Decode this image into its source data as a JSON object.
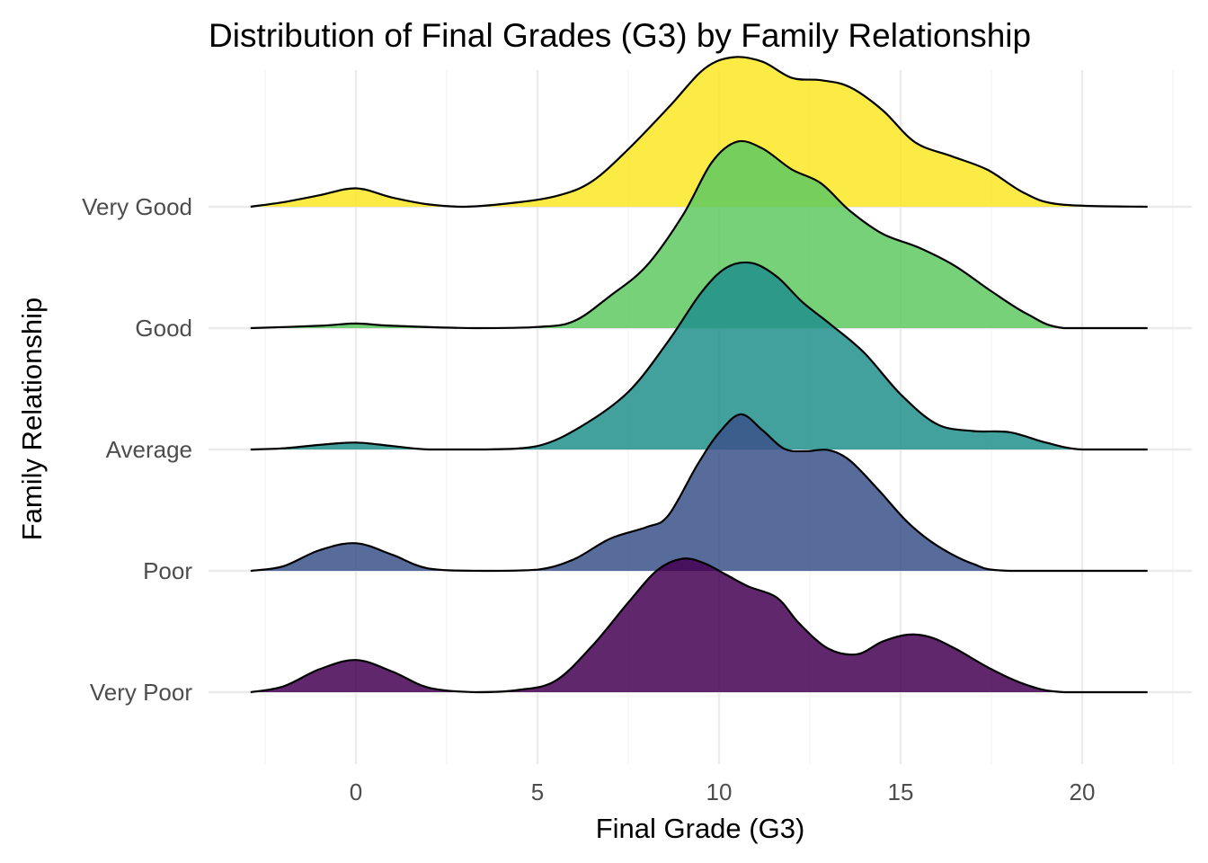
{
  "chart_data": {
    "type": "ridgeline",
    "title": "Distribution of Final Grades (G3) by Family Relationship",
    "xlabel": "Final Grade (G3)",
    "ylabel": "Family Relationship",
    "xlim": [
      -2.5,
      22.5
    ],
    "xticks": [
      0,
      5,
      10,
      15,
      20
    ],
    "grid": true,
    "legend": "none",
    "series": [
      {
        "name": "Very Poor",
        "color": "#440154",
        "points": [
          [
            -2.9,
            0.0
          ],
          [
            -2,
            0.05
          ],
          [
            -1,
            0.2
          ],
          [
            0,
            0.28
          ],
          [
            1,
            0.18
          ],
          [
            2,
            0.04
          ],
          [
            3.3,
            0.0
          ],
          [
            4.5,
            0.02
          ],
          [
            5.5,
            0.1
          ],
          [
            6.5,
            0.4
          ],
          [
            7.5,
            0.78
          ],
          [
            8.3,
            1.06
          ],
          [
            9.0,
            1.16
          ],
          [
            9.6,
            1.12
          ],
          [
            10.2,
            1.02
          ],
          [
            10.8,
            0.92
          ],
          [
            11.6,
            0.82
          ],
          [
            12.2,
            0.6
          ],
          [
            13.0,
            0.38
          ],
          [
            13.8,
            0.33
          ],
          [
            14.5,
            0.44
          ],
          [
            15.2,
            0.5
          ],
          [
            15.8,
            0.48
          ],
          [
            16.5,
            0.38
          ],
          [
            17.5,
            0.2
          ],
          [
            18.5,
            0.06
          ],
          [
            19.5,
            0.0
          ],
          [
            21.8,
            0.0
          ]
        ]
      },
      {
        "name": "Poor",
        "color": "#3b528b",
        "points": [
          [
            -2.9,
            0.0
          ],
          [
            -2,
            0.04
          ],
          [
            -1,
            0.18
          ],
          [
            0,
            0.24
          ],
          [
            1,
            0.14
          ],
          [
            2,
            0.02
          ],
          [
            3.5,
            0.0
          ],
          [
            5,
            0.01
          ],
          [
            6,
            0.1
          ],
          [
            7,
            0.28
          ],
          [
            8,
            0.38
          ],
          [
            8.6,
            0.48
          ],
          [
            9.4,
            0.92
          ],
          [
            10.0,
            1.2
          ],
          [
            10.6,
            1.36
          ],
          [
            11.2,
            1.22
          ],
          [
            11.8,
            1.06
          ],
          [
            12.4,
            1.04
          ],
          [
            13.0,
            1.05
          ],
          [
            13.6,
            0.96
          ],
          [
            14.4,
            0.7
          ],
          [
            15.2,
            0.42
          ],
          [
            16,
            0.22
          ],
          [
            17,
            0.06
          ],
          [
            18,
            0.0
          ],
          [
            21.8,
            0.0
          ]
        ]
      },
      {
        "name": "Average",
        "color": "#21908c",
        "points": [
          [
            -2.9,
            0.0
          ],
          [
            -2,
            0.01
          ],
          [
            -1,
            0.04
          ],
          [
            0,
            0.06
          ],
          [
            1,
            0.03
          ],
          [
            2,
            0.0
          ],
          [
            3.5,
            0.0
          ],
          [
            5,
            0.03
          ],
          [
            6.2,
            0.2
          ],
          [
            7.5,
            0.5
          ],
          [
            8.6,
            0.94
          ],
          [
            9.5,
            1.36
          ],
          [
            10.2,
            1.58
          ],
          [
            10.9,
            1.62
          ],
          [
            11.6,
            1.5
          ],
          [
            12.3,
            1.28
          ],
          [
            13.1,
            1.08
          ],
          [
            14.0,
            0.84
          ],
          [
            15.0,
            0.48
          ],
          [
            16.0,
            0.22
          ],
          [
            17.0,
            0.16
          ],
          [
            18.0,
            0.15
          ],
          [
            19.0,
            0.06
          ],
          [
            20.0,
            0.0
          ],
          [
            21.8,
            0.0
          ]
        ]
      },
      {
        "name": "Good",
        "color": "#5ec962",
        "points": [
          [
            -2.9,
            0.0
          ],
          [
            -1,
            0.02
          ],
          [
            0,
            0.04
          ],
          [
            1,
            0.02
          ],
          [
            3.3,
            0.0
          ],
          [
            5,
            0.01
          ],
          [
            6,
            0.06
          ],
          [
            7,
            0.28
          ],
          [
            8,
            0.54
          ],
          [
            9,
            0.98
          ],
          [
            9.8,
            1.44
          ],
          [
            10.5,
            1.62
          ],
          [
            11.2,
            1.56
          ],
          [
            12.0,
            1.38
          ],
          [
            12.8,
            1.26
          ],
          [
            13.6,
            1.02
          ],
          [
            14.5,
            0.82
          ],
          [
            15.5,
            0.7
          ],
          [
            16.5,
            0.54
          ],
          [
            17.5,
            0.32
          ],
          [
            18.5,
            0.12
          ],
          [
            19.5,
            0.0
          ],
          [
            21.8,
            0.0
          ]
        ]
      },
      {
        "name": "Very Good",
        "color": "#fde725",
        "points": [
          [
            -2.9,
            0.0
          ],
          [
            -2,
            0.04
          ],
          [
            -1,
            0.1
          ],
          [
            0,
            0.16
          ],
          [
            1,
            0.08
          ],
          [
            2,
            0.02
          ],
          [
            3,
            0.0
          ],
          [
            4.5,
            0.04
          ],
          [
            5.6,
            0.1
          ],
          [
            6.5,
            0.22
          ],
          [
            7.5,
            0.5
          ],
          [
            8.6,
            0.86
          ],
          [
            9.6,
            1.2
          ],
          [
            10.4,
            1.3
          ],
          [
            11.2,
            1.26
          ],
          [
            12.0,
            1.12
          ],
          [
            12.8,
            1.1
          ],
          [
            13.6,
            1.04
          ],
          [
            14.5,
            0.84
          ],
          [
            15.4,
            0.56
          ],
          [
            16.4,
            0.44
          ],
          [
            17.4,
            0.32
          ],
          [
            18.4,
            0.12
          ],
          [
            19.4,
            0.02
          ],
          [
            21.8,
            0.0
          ]
        ]
      }
    ]
  }
}
